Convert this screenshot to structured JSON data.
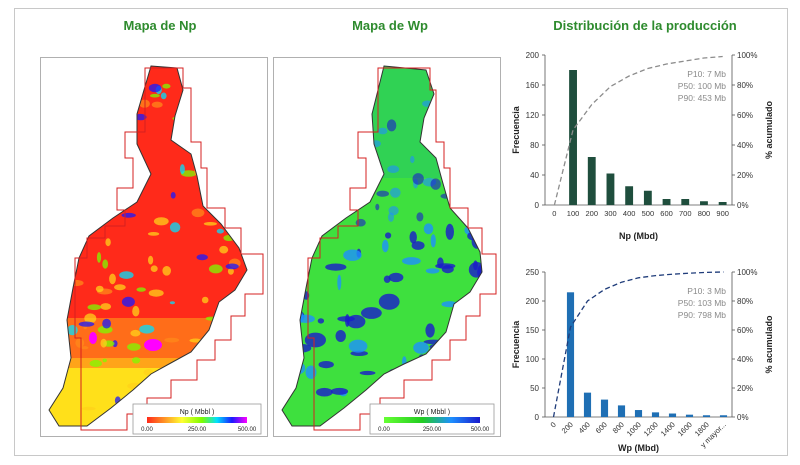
{
  "titles": {
    "np_map": "Mapa de Np",
    "wp_map": "Mapa de Wp",
    "distribution": "Distribución de la producción"
  },
  "maps": {
    "np": {
      "legend_title": "Np ( Mbbl )",
      "legend_ticks": [
        "0.00",
        "250.00",
        "500.00"
      ],
      "colors": [
        "#ffff33",
        "#ff2a1a",
        "#ff2a1a",
        "#ffd21a",
        "#7cfc00",
        "#00e0ff",
        "#1a1aff",
        "#ff00ff"
      ]
    },
    "wp": {
      "legend_title": "Wp ( Mbbl )",
      "legend_ticks": [
        "0.00",
        "250.00",
        "500.00"
      ],
      "colors": [
        "#66ff33",
        "#22cc22",
        "#1e90ff",
        "#1a1acc"
      ]
    }
  },
  "chart_data": [
    {
      "type": "bar",
      "xlabel": "Np (Mbd)",
      "ylabel": "Frecuencia",
      "y2label": "% acumulado",
      "categories": [
        "0",
        "100",
        "200",
        "300",
        "400",
        "500",
        "600",
        "700",
        "800",
        "900"
      ],
      "values": [
        0,
        180,
        64,
        42,
        25,
        19,
        8,
        8,
        5,
        4
      ],
      "cumulative_pct": [
        0,
        50,
        67,
        79,
        86,
        91,
        94,
        96,
        98,
        99
      ],
      "ylim": [
        0,
        200
      ],
      "yticks": [
        "0",
        "40",
        "80",
        "120",
        "160",
        "200"
      ],
      "y2ticks": [
        "0%",
        "20%",
        "40%",
        "60%",
        "80%",
        "100%"
      ],
      "annotations": [
        "P10: 7 Mb",
        "P50: 100 Mb",
        "P90: 453 Mb"
      ],
      "bar_color": "#1f4e3d",
      "line_color": "#8c8c8c"
    },
    {
      "type": "bar",
      "xlabel": "Wp (Mbd)",
      "ylabel": "Frecuencia",
      "y2label": "% acumulado",
      "categories": [
        "0",
        "200",
        "400",
        "600",
        "800",
        "1000",
        "1200",
        "1400",
        "1600",
        "1800",
        "y mayor..."
      ],
      "values": [
        0,
        215,
        42,
        30,
        20,
        12,
        8,
        6,
        4,
        3,
        3
      ],
      "cumulative_pct": [
        0,
        62,
        80,
        88,
        93,
        96,
        97.5,
        98.5,
        99.2,
        99.7,
        100
      ],
      "ylim": [
        0,
        250
      ],
      "yticks": [
        "0",
        "50",
        "100",
        "150",
        "200",
        "250"
      ],
      "y2ticks": [
        "0%",
        "20%",
        "40%",
        "60%",
        "80%",
        "100%"
      ],
      "annotations": [
        "P10: 3 Mb",
        "P50: 103 Mb",
        "P90: 798 Mb"
      ],
      "bar_color": "#1f6fb4",
      "line_color": "#1f3c7a"
    }
  ]
}
